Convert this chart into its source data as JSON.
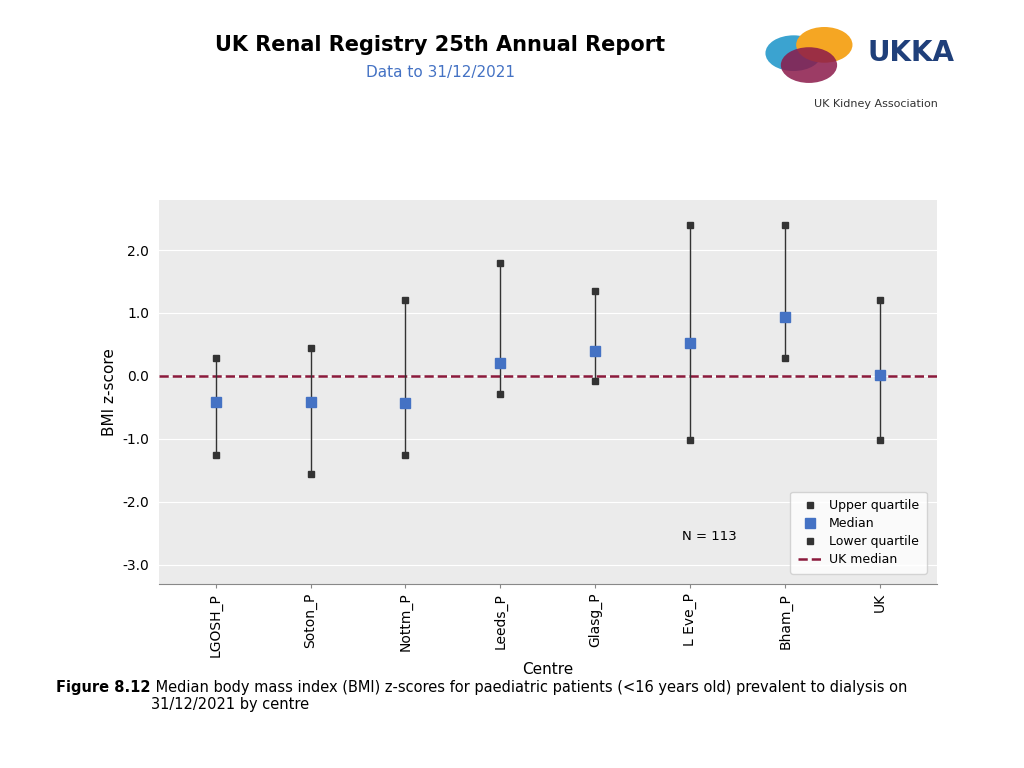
{
  "title": "UK Renal Registry 25th Annual Report",
  "subtitle": "Data to 31/12/2021",
  "xlabel": "Centre",
  "ylabel": "BMI z-score",
  "categories": [
    "LGOSH_P",
    "Soton_P",
    "Nottm_P",
    "Leeds_P",
    "Glasg_P",
    "L Eve_P",
    "Bham_P",
    "UK"
  ],
  "medians": [
    -0.42,
    -0.42,
    -0.43,
    0.2,
    0.4,
    0.52,
    0.93,
    0.02
  ],
  "upper_quartiles": [
    0.28,
    0.45,
    1.2,
    1.8,
    1.35,
    2.4,
    2.4,
    1.2
  ],
  "lower_quartiles": [
    -1.25,
    -1.55,
    -1.25,
    -0.28,
    -0.08,
    -1.02,
    0.28,
    -1.02
  ],
  "n_label": "N = 113",
  "ylim": [
    -3.3,
    2.8
  ],
  "yticks": [
    -3.0,
    -2.0,
    -1.0,
    0.0,
    1.0,
    2.0
  ],
  "median_color": "#4472C4",
  "line_color": "#333333",
  "uk_median_color": "#8B1A3C",
  "plot_bg_color": "#EBEBEB",
  "title_fontsize": 15,
  "subtitle_fontsize": 11,
  "axis_label_fontsize": 11,
  "tick_fontsize": 10,
  "legend_fontsize": 9,
  "caption_bold": "Figure 8.12",
  "caption_text": " Median body mass index (BMI) z-scores for paediatric patients (<16 years old) prevalent to dialysis on\n31/12/2021 by centre"
}
